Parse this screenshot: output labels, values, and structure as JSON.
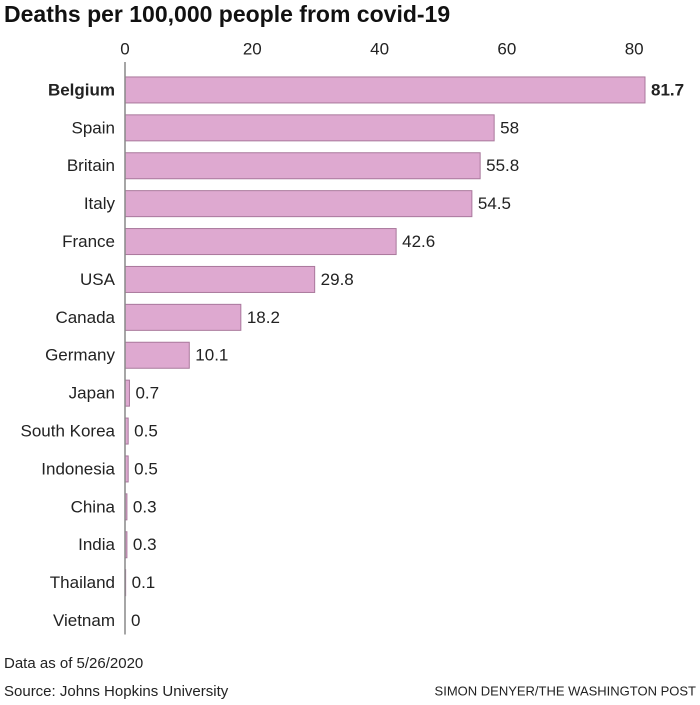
{
  "chart_data": {
    "type": "hbar",
    "title": "Deaths per 100,000 people from covid-19",
    "categories": [
      "Belgium",
      "Spain",
      "Britain",
      "Italy",
      "France",
      "USA",
      "Canada",
      "Germany",
      "Japan",
      "South Korea",
      "Indonesia",
      "China",
      "India",
      "Thailand",
      "Vietnam"
    ],
    "values": [
      81.7,
      58,
      55.8,
      54.5,
      42.6,
      29.8,
      18.2,
      10.1,
      0.7,
      0.5,
      0.5,
      0.3,
      0.3,
      0.1,
      0
    ],
    "color": "#dea9d0",
    "edge_color": "#a9789c",
    "highlight": "Belgium",
    "xlim": [
      0,
      85
    ],
    "xticks": [
      0,
      20,
      40,
      60,
      80
    ],
    "grid": false,
    "notes": [
      "Data as of 5/26/2020",
      "Source: Johns Hopkins University"
    ],
    "credit": "SIMON DENYER/THE WASHINGTON POST"
  }
}
